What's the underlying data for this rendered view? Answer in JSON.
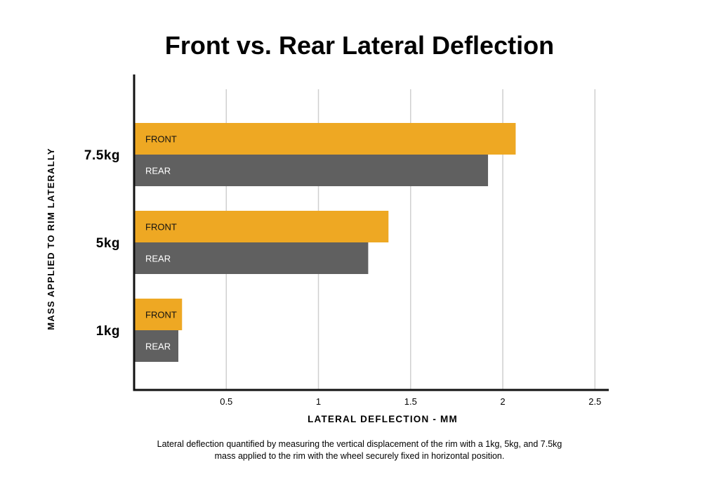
{
  "title": "Front vs. Rear Lateral Deflection",
  "caption": "Lateral deflection quantified by measuring the vertical displacement of the rim with a 1kg, 5kg, and 7.5kg mass applied to the rim with the wheel securely fixed in horizontal position.",
  "colors": {
    "front": "#EEA823",
    "rear": "#606060",
    "grid": "#cfcfcf",
    "axis": "#111111"
  },
  "chart_data": {
    "type": "bar",
    "orientation": "horizontal",
    "categories": [
      "7.5kg",
      "5kg",
      "1kg"
    ],
    "series": [
      {
        "name": "FRONT",
        "values": [
          2.07,
          1.38,
          0.26
        ]
      },
      {
        "name": "REAR",
        "values": [
          1.92,
          1.27,
          0.24
        ]
      }
    ],
    "xlabel": "LATERAL DEFLECTION - MM",
    "ylabel": "MASS APPLIED TO RIM LATERALLY",
    "xticks": [
      "0.5",
      "1",
      "1.5",
      "2",
      "2.5"
    ],
    "xlim": [
      0,
      2.575
    ],
    "grid": "vertical"
  }
}
